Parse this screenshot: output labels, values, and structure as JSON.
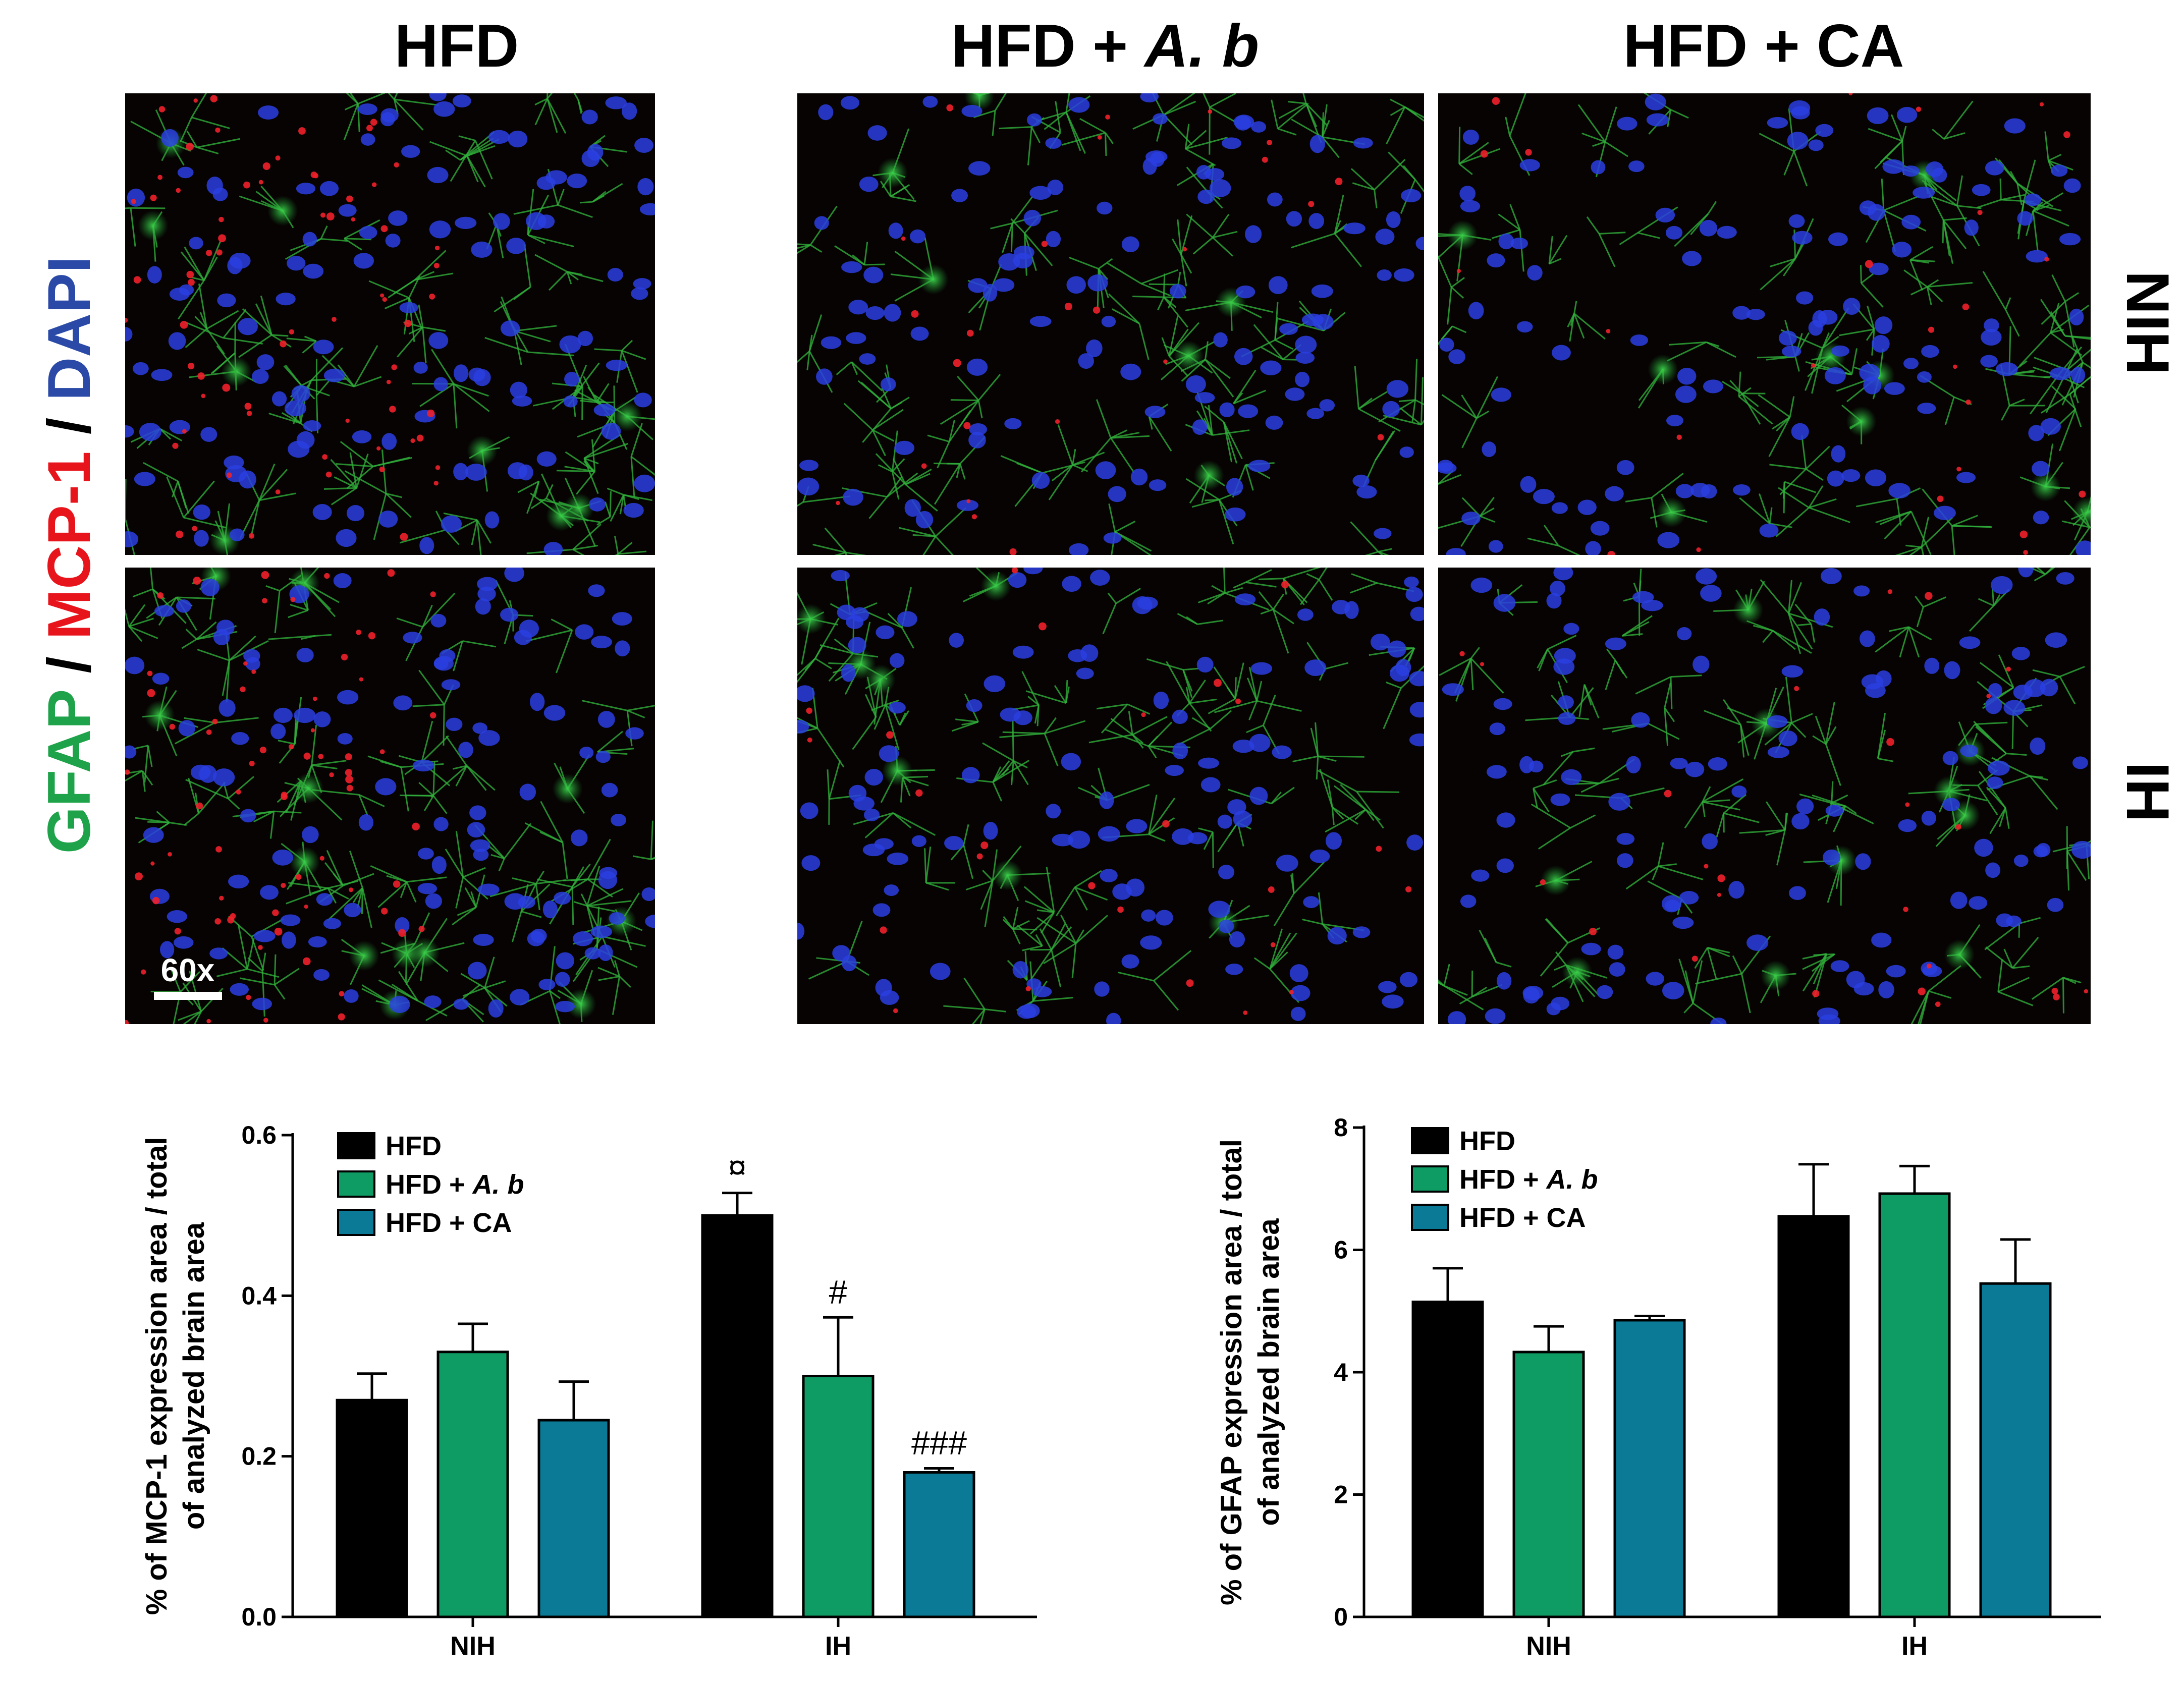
{
  "micrographs": {
    "columns": [
      {
        "prefix": "HFD",
        "italic": ""
      },
      {
        "prefix": "HFD + ",
        "italic": "A. b"
      },
      {
        "prefix": "HFD + CA",
        "italic": ""
      }
    ],
    "rows": [
      "NIH",
      "IH"
    ],
    "stain_label": [
      {
        "text": "GFAP",
        "color": "#1fa34a"
      },
      {
        "text": " / ",
        "color": "#000000"
      },
      {
        "text": "MCP-1",
        "color": "#e8141b"
      },
      {
        "text": " / ",
        "color": "#000000"
      },
      {
        "text": "DAPI",
        "color": "#2b4aa8"
      }
    ],
    "magnification": "60x"
  },
  "colors": {
    "HFD": "#000000",
    "HFD + A. b": "#0f9b64",
    "HFD + CA": "#0a7a96",
    "image_bg": "#070303"
  },
  "chart_data": [
    {
      "type": "bar",
      "ylabel_lines": [
        "% of MCP-1 expression area / total",
        "of analyzed brain area"
      ],
      "categories": [
        "NIH",
        "IH"
      ],
      "ylim": [
        0,
        0.6
      ],
      "yticks": [
        "0.0",
        "0.2",
        "0.4",
        "0.6"
      ],
      "legend": "top-left",
      "series": [
        {
          "name": "HFD",
          "name_prefix": "HFD",
          "name_italic": "",
          "values": [
            0.27,
            0.5
          ],
          "errors": [
            0.033,
            0.028
          ]
        },
        {
          "name": "HFD + A. b",
          "name_prefix": "HFD + ",
          "name_italic": "A. b",
          "values": [
            0.33,
            0.3
          ],
          "errors": [
            0.035,
            0.073
          ]
        },
        {
          "name": "HFD + CA",
          "name_prefix": "HFD + CA",
          "name_italic": "",
          "values": [
            0.245,
            0.18
          ],
          "errors": [
            0.048,
            0.005
          ]
        }
      ],
      "annotations": [
        {
          "category": "IH",
          "series": "HFD",
          "text": "¤"
        },
        {
          "category": "IH",
          "series": "HFD + A. b",
          "text": "#"
        },
        {
          "category": "IH",
          "series": "HFD + CA",
          "text": "###"
        }
      ]
    },
    {
      "type": "bar",
      "ylabel_lines": [
        "% of GFAP expression area / total",
        "of analyzed brain area"
      ],
      "categories": [
        "NIH",
        "IH"
      ],
      "ylim": [
        0,
        8
      ],
      "yticks": [
        "0",
        "2",
        "4",
        "6",
        "8"
      ],
      "legend": "top-left",
      "series": [
        {
          "name": "HFD",
          "name_prefix": "HFD",
          "name_italic": "",
          "values": [
            5.15,
            6.55
          ],
          "errors": [
            0.55,
            0.85
          ]
        },
        {
          "name": "HFD + A. b",
          "name_prefix": "HFD + ",
          "name_italic": "A. b",
          "values": [
            4.33,
            6.92
          ],
          "errors": [
            0.42,
            0.45
          ]
        },
        {
          "name": "HFD + CA",
          "name_prefix": "HFD + CA",
          "name_italic": "",
          "values": [
            4.85,
            5.45
          ],
          "errors": [
            0.07,
            0.72
          ]
        }
      ],
      "annotations": []
    }
  ]
}
